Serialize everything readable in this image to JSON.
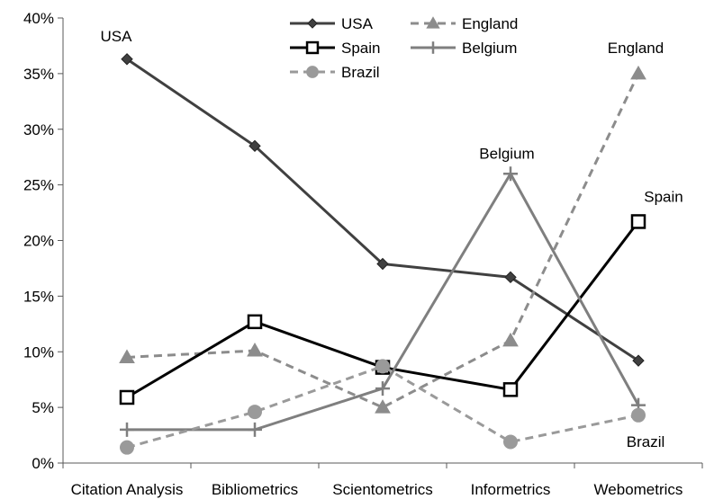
{
  "chart_data": {
    "type": "line",
    "categories": [
      "Citation Analysis",
      "Bibliometrics",
      "Scientometrics",
      "Informetrics",
      "Webometrics"
    ],
    "ylim": [
      0,
      40
    ],
    "y_ticks": [
      0,
      5,
      10,
      15,
      20,
      25,
      30,
      35,
      40
    ],
    "y_tick_labels": [
      "0%",
      "5%",
      "10%",
      "15%",
      "20%",
      "25%",
      "30%",
      "35%",
      "40%"
    ],
    "grid": false,
    "legend_position": "top",
    "series": [
      {
        "name": "USA",
        "values": [
          36.3,
          28.5,
          17.9,
          16.7,
          9.2
        ],
        "color": "#404040",
        "dash": "solid",
        "marker": "diamond"
      },
      {
        "name": "England",
        "values": [
          9.5,
          10.1,
          5.0,
          11.0,
          35.0
        ],
        "color": "#8c8c8c",
        "dash": "dashed",
        "marker": "triangle"
      },
      {
        "name": "Spain",
        "values": [
          5.9,
          12.7,
          8.6,
          6.6,
          21.7
        ],
        "color": "#000000",
        "dash": "solid",
        "marker": "square-open"
      },
      {
        "name": "Belgium",
        "values": [
          3.0,
          3.0,
          6.7,
          26.0,
          5.2
        ],
        "color": "#7f7f7f",
        "dash": "solid",
        "marker": "plus"
      },
      {
        "name": "Brazil",
        "values": [
          1.4,
          4.6,
          8.7,
          1.9,
          4.3
        ],
        "color": "#9a9a9a",
        "dash": "dashed",
        "marker": "circle"
      }
    ],
    "annotations": [
      {
        "text": "USA",
        "series": "USA",
        "index": 0
      },
      {
        "text": "England",
        "series": "England",
        "index": 4
      },
      {
        "text": "Belgium",
        "series": "Belgium",
        "index": 3
      },
      {
        "text": "Spain",
        "series": "Spain",
        "index": 4
      },
      {
        "text": "Brazil",
        "series": "Brazil",
        "index": 4
      }
    ]
  }
}
